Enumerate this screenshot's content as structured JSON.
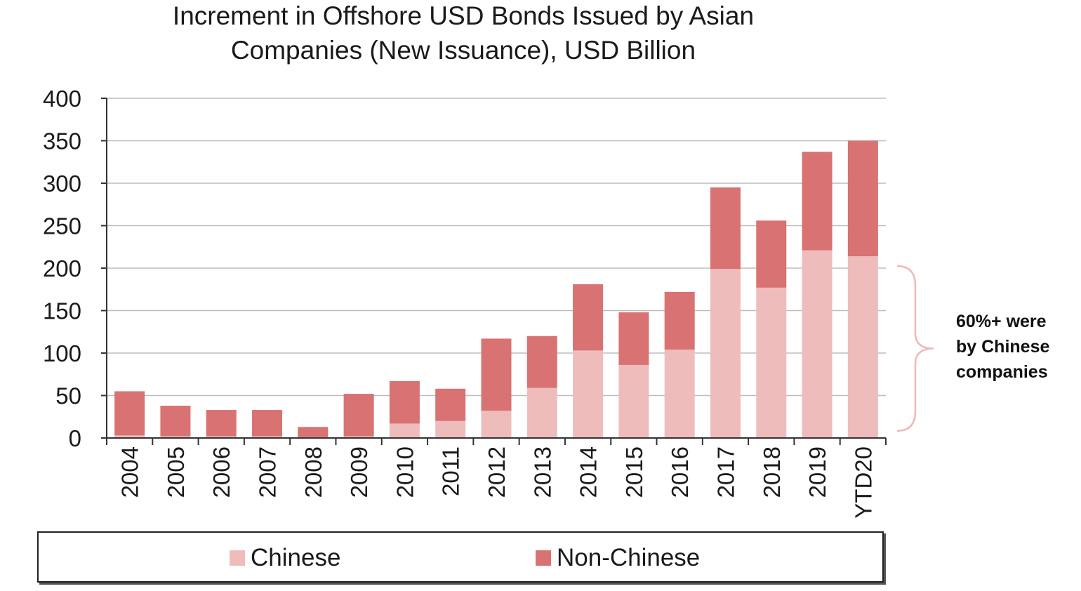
{
  "chart_data": {
    "type": "bar",
    "stacked": true,
    "title": "Increment in Offshore USD Bonds Issued by Asian Companies (New Issuance), USD Billion",
    "title_lines": [
      "Increment in Offshore USD Bonds Issued by Asian",
      "Companies (New Issuance), USD Billion"
    ],
    "categories": [
      "2004",
      "2005",
      "2006",
      "2007",
      "2008",
      "2009",
      "2010",
      "2011",
      "2012",
      "2013",
      "2014",
      "2015",
      "2016",
      "2017",
      "2018",
      "2019",
      "YTD20"
    ],
    "series": [
      {
        "name": "Chinese",
        "color": "#efbcbc",
        "values": [
          3,
          2,
          2,
          2,
          1,
          2,
          17,
          20,
          32,
          59,
          103,
          86,
          104,
          199,
          177,
          221,
          214
        ]
      },
      {
        "name": "Non-Chinese",
        "color": "#d97272",
        "values": [
          52,
          36,
          31,
          31,
          12,
          50,
          50,
          38,
          85,
          61,
          78,
          62,
          68,
          96,
          79,
          116,
          136
        ]
      }
    ],
    "ylim": [
      0,
      400
    ],
    "yticks": [
      0,
      50,
      100,
      150,
      200,
      250,
      300,
      350,
      400
    ],
    "xlabel": "",
    "ylabel": "",
    "grid": true,
    "legend_position": "bottom",
    "annotation": {
      "lines": [
        "60%+ were",
        "by Chinese",
        "companies"
      ],
      "bracket_range": [
        10,
        200
      ],
      "bracket_color": "#f0b8b8"
    }
  }
}
